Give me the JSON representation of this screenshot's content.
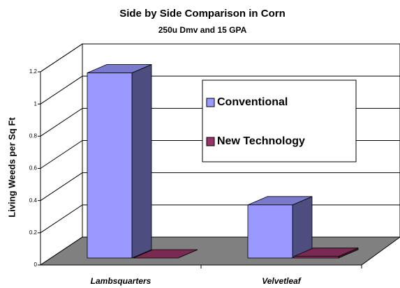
{
  "chart_data": {
    "type": "bar3d",
    "title": "Side by Side Comparison in Corn",
    "subtitle": "250u Dmv and 15 GPA",
    "y_label": "Living Weeds per Sq Ft",
    "categories": [
      "Lambsquarters",
      "Velvetleaf"
    ],
    "series": [
      {
        "name": "Conventional",
        "color": "#9999ff",
        "values": [
          1.15,
          0.33
        ]
      },
      {
        "name": "New Technology",
        "color": "#993366",
        "values": [
          0,
          0.01
        ]
      }
    ],
    "ylim": [
      0,
      1.2
    ],
    "yticks": [
      0,
      0.2,
      0.4,
      0.6,
      0.8,
      1,
      1.2
    ],
    "grid": true
  }
}
